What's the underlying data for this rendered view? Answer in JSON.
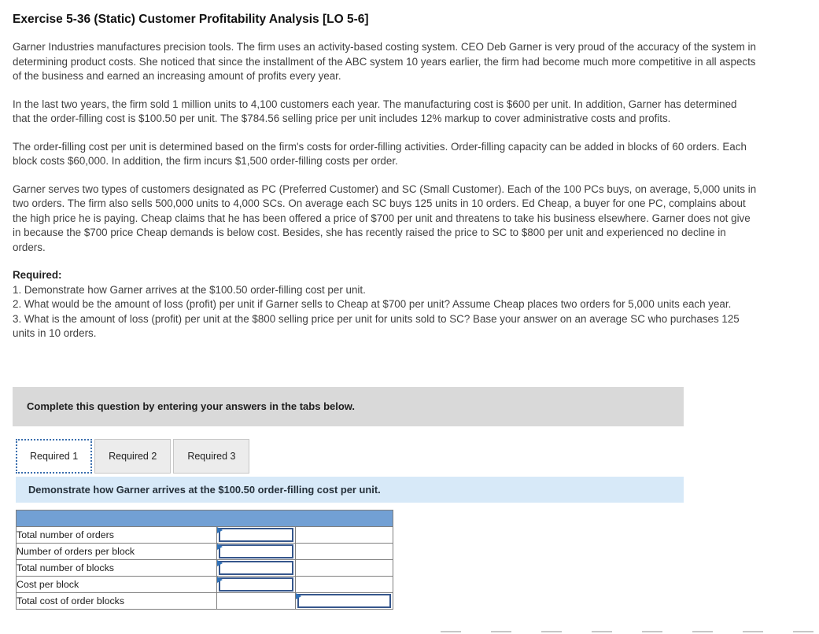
{
  "content": {
    "title": "Exercise 5-36 (Static) Customer Profitability Analysis [LO 5-6]",
    "paragraphs": [
      "Garner Industries manufactures precision tools. The firm uses an activity-based costing system. CEO Deb Garner is very proud of the accuracy of the system in determining product costs. She noticed that since the installment of the ABC system 10 years earlier, the firm had become much more competitive in all aspects of the business and earned an increasing amount of profits every year.",
      "In the last two years, the firm sold 1 million units to 4,100 customers each year. The manufacturing cost is $600 per unit. In addition, Garner has determined that the order-filling cost is $100.50 per unit. The $784.56 selling price per unit includes 12% markup to cover administrative costs and profits.",
      "The order-filling cost per unit is determined based on the firm's costs for order-filling activities. Order-filling capacity can be added in blocks of 60 orders. Each block costs $60,000. In addition, the firm incurs $1,500 order-filling costs per order.",
      "Garner serves two types of customers designated as PC (Preferred Customer) and SC (Small Customer). Each of the 100 PCs buys, on average, 5,000 units in two orders. The firm also sells 500,000 units to 4,000 SCs. On average each SC buys 125 units in 10 orders. Ed Cheap, a buyer for one PC, complains about the high price he is paying. Cheap claims that he has been offered a price of $700 per unit and threatens to take his business elsewhere. Garner does not give in because the $700 price Cheap demands is below cost. Besides, she has recently raised the price to SC to $800 per unit and experienced no decline in orders."
    ],
    "required_label": "Required:",
    "required_items": [
      "1. Demonstrate how Garner arrives at the $100.50 order-filling cost per unit.",
      "2. What would be the amount of loss (profit) per unit if Garner sells to Cheap at $700 per unit? Assume Cheap places two orders for 5,000 units each year.",
      "3. What is the amount of loss (profit) per unit at the $800 selling price per unit for units sold to SC? Base your answer on an average SC who purchases 125 units in 10 orders."
    ]
  },
  "instruction_box": {
    "text": "Complete this question by entering your answers in the tabs below."
  },
  "tabs": [
    {
      "label": "Required 1",
      "active": true
    },
    {
      "label": "Required 2",
      "active": false
    },
    {
      "label": "Required 3",
      "active": false
    }
  ],
  "prompt": {
    "text": "Demonstrate how Garner arrives at the $100.50 order-filling cost per unit."
  },
  "table": {
    "rows": [
      {
        "label": "Total number of orders",
        "input_column": 2,
        "value": ""
      },
      {
        "label": "Number of orders per block",
        "input_column": 2,
        "value": ""
      },
      {
        "label": "Total number of blocks",
        "input_column": 2,
        "value": ""
      },
      {
        "label": "Cost per block",
        "input_column": 2,
        "value": ""
      },
      {
        "label": "Total cost of order blocks",
        "input_column": 3,
        "value": ""
      }
    ]
  },
  "icons": {
    "cell-marker-icon": "blue right-pointing editable-cell triangle"
  },
  "colors": {
    "table_header_blue": "#72a0d4",
    "input_border_navy": "#35568c",
    "marker_blue": "#2f71b8",
    "prompt_bar_blue": "#d7e9f8",
    "instruction_box_gray": "#d9d9d9",
    "active_tab_border": "#3b6fae"
  }
}
